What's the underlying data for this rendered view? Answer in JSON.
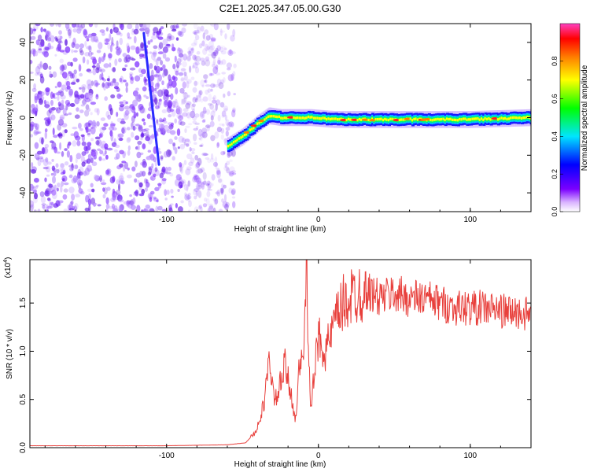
{
  "title": "C2E1.2025.347.05.00.G30",
  "chart_data": [
    {
      "id": "spectrogram",
      "type": "heatmap",
      "xlabel": "Height of straight line (km)",
      "ylabel": "Frequency (Hz)",
      "xlim": [
        -190,
        140
      ],
      "ylim": [
        -50,
        50
      ],
      "xticks": [
        -100,
        0,
        100
      ],
      "xticklabels": [
        "-100",
        "0",
        "100"
      ],
      "yticks": [
        -40,
        -20,
        0,
        20,
        40
      ],
      "yticklabels": [
        "-40",
        "-20",
        "0",
        "20",
        "40"
      ],
      "grid": false,
      "track": {
        "x": [
          -60,
          -50,
          -40,
          -33,
          -25,
          -15,
          -5,
          10,
          30,
          60,
          100,
          140
        ],
        "y": [
          -15,
          -10,
          -3,
          1,
          0,
          0,
          0,
          -1,
          -1,
          -1,
          -1,
          0
        ]
      },
      "streak": {
        "x": [
          -115,
          -105
        ],
        "y": [
          45,
          -25
        ]
      }
    },
    {
      "id": "colorbar",
      "label": "Normalized spectral amplitude",
      "range": [
        0,
        1
      ],
      "ticks": [
        0.0,
        0.2,
        0.4,
        0.6,
        0.8
      ],
      "ticklabels": [
        "0.0",
        "0.2",
        "0.4",
        "0.6",
        "0.8"
      ],
      "colors": [
        "#ffffff",
        "#7b00ff",
        "#0000ff",
        "#00e5ff",
        "#00ff00",
        "#ffff00",
        "#ff8000",
        "#ff0000",
        "#ff40c0"
      ]
    },
    {
      "id": "snr",
      "type": "line",
      "xlabel": "Height of straight line (km)",
      "ylabel": "SNR (10 * v/v)",
      "multiplier": "(x10",
      "multiplier_exp": "4",
      "multiplier_close": ")",
      "xlim": [
        -190,
        140
      ],
      "ylim": [
        0,
        1.95
      ],
      "xticks": [
        -100,
        0,
        100
      ],
      "xticklabels": [
        "-100",
        "0",
        "100"
      ],
      "yticks": [
        0.0,
        0.5,
        1.0,
        1.5
      ],
      "yticklabels": [
        "0.0",
        "0.5",
        "1.0",
        "1.5"
      ],
      "color": "#e8403c",
      "grid": false,
      "series": [
        {
          "x": [
            -190,
            -150,
            -100,
            -60,
            -48,
            -42,
            -38,
            -35,
            -32,
            -29,
            -26,
            -22,
            -18,
            -15,
            -12,
            -10,
            -8,
            -5,
            0,
            5,
            10,
            15,
            20,
            25,
            30,
            40,
            50,
            60,
            70,
            80,
            90,
            100,
            110,
            120,
            130,
            140
          ],
          "y": [
            0.02,
            0.02,
            0.02,
            0.03,
            0.05,
            0.15,
            0.3,
            0.55,
            0.95,
            0.45,
            0.6,
            0.85,
            0.55,
            0.3,
            0.95,
            0.8,
            1.95,
            0.4,
            1.15,
            1.0,
            1.25,
            1.45,
            1.55,
            1.6,
            1.65,
            1.55,
            1.6,
            1.55,
            1.55,
            1.5,
            1.45,
            1.45,
            1.45,
            1.42,
            1.4,
            1.38
          ]
        }
      ]
    }
  ]
}
